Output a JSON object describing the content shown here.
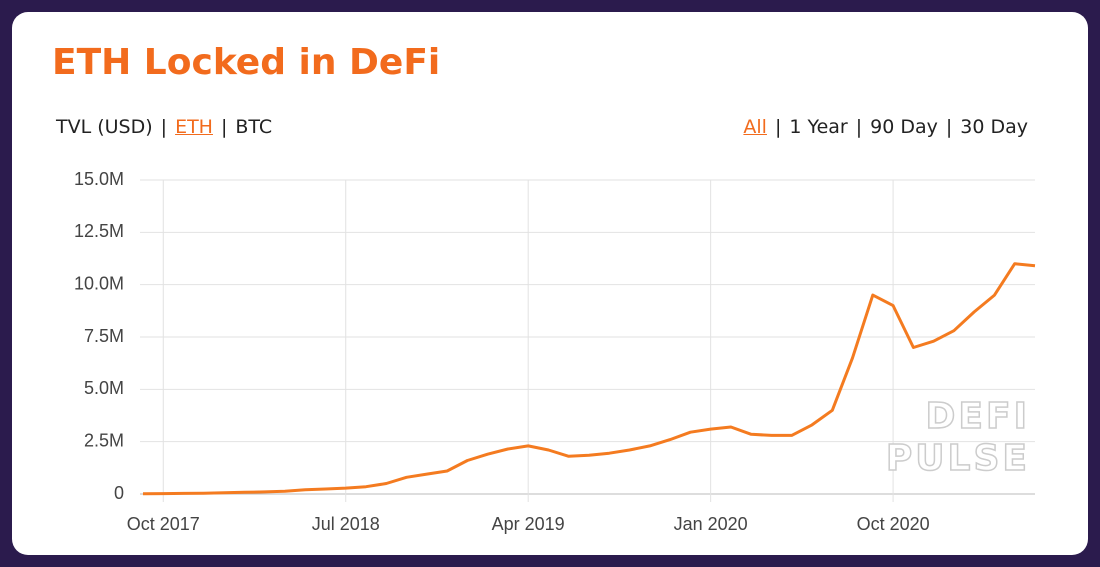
{
  "header": {
    "title": "ETH Locked in DeFi",
    "units": [
      {
        "label": "TVL (USD)",
        "active": false
      },
      {
        "label": "ETH",
        "active": true
      },
      {
        "label": "BTC",
        "active": false
      }
    ],
    "ranges": [
      {
        "label": "All",
        "active": true
      },
      {
        "label": "1 Year",
        "active": false
      },
      {
        "label": "90 Day",
        "active": false
      },
      {
        "label": "30 Day",
        "active": false
      }
    ]
  },
  "watermark": [
    "DEFI",
    "PULSE"
  ],
  "chart_data": {
    "type": "line",
    "color": "#f47b20",
    "grid": true,
    "xlim": [
      "2017-09",
      "2021-05"
    ],
    "xticks": [
      {
        "value": "2017-10",
        "label": "Oct 2017"
      },
      {
        "value": "2018-07",
        "label": "Jul 2018"
      },
      {
        "value": "2019-04",
        "label": "Apr 2019"
      },
      {
        "value": "2020-01",
        "label": "Jan 2020"
      },
      {
        "value": "2020-10",
        "label": "Oct 2020"
      }
    ],
    "ylim": [
      0,
      15000000
    ],
    "yticks": [
      0,
      {
        "value": 2500000,
        "label": "2.5M"
      },
      {
        "value": 5000000,
        "label": "5.0M"
      },
      {
        "value": 7500000,
        "label": "7.5M"
      },
      {
        "value": 10000000,
        "label": "10.0M"
      },
      {
        "value": 12500000,
        "label": "12.5M"
      },
      {
        "value": 15000000,
        "label": "15.0M"
      }
    ],
    "x": [
      "2017-09",
      "2017-10",
      "2017-11",
      "2017-12",
      "2018-01",
      "2018-02",
      "2018-03",
      "2018-04",
      "2018-05",
      "2018-06",
      "2018-07",
      "2018-08",
      "2018-09",
      "2018-10",
      "2018-11",
      "2018-12",
      "2019-01",
      "2019-02",
      "2019-03",
      "2019-04",
      "2019-05",
      "2019-06",
      "2019-07",
      "2019-08",
      "2019-09",
      "2019-10",
      "2019-11",
      "2019-12",
      "2020-01",
      "2020-02",
      "2020-03",
      "2020-04",
      "2020-05",
      "2020-06",
      "2020-07",
      "2020-08",
      "2020-09",
      "2020-10",
      "2020-11",
      "2020-12",
      "2021-01",
      "2021-02",
      "2021-03",
      "2021-04",
      "2021-05"
    ],
    "values": [
      10000,
      20000,
      30000,
      40000,
      60000,
      80000,
      100000,
      130000,
      200000,
      240000,
      280000,
      350000,
      500000,
      800000,
      950000,
      1100000,
      1600000,
      1900000,
      2150000,
      2300000,
      2100000,
      1800000,
      1850000,
      1950000,
      2100000,
      2300000,
      2600000,
      2950000,
      3100000,
      3200000,
      2850000,
      2800000,
      2800000,
      3300000,
      4000000,
      6500000,
      9500000,
      9000000,
      7000000,
      7300000,
      7800000,
      8700000,
      9500000,
      11000000,
      10900000
    ]
  }
}
